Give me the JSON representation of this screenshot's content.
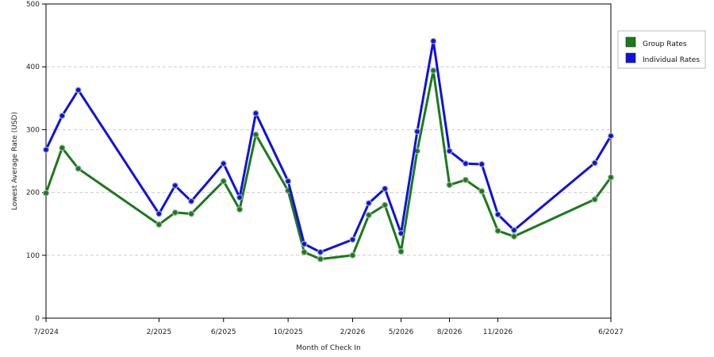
{
  "chart_data": {
    "type": "line",
    "xlabel": "Month of Check In",
    "ylabel": "Lowest Average Rate (USD)",
    "ylim": [
      0,
      500
    ],
    "yticks": [
      0,
      100,
      200,
      300,
      400,
      500
    ],
    "grid": "horizontal dashed",
    "legend_position": "top-right",
    "x": [
      "7/2024",
      "8/2024",
      "9/2024",
      "10/2024",
      "11/2024",
      "12/2024",
      "1/2025",
      "2/2025",
      "3/2025",
      "4/2025",
      "5/2025",
      "6/2025",
      "7/2025",
      "8/2025",
      "9/2025",
      "10/2025",
      "11/2025",
      "12/2025",
      "1/2026",
      "2/2026",
      "3/2026",
      "4/2026",
      "5/2026",
      "6/2026",
      "7/2026",
      "8/2026",
      "9/2026",
      "10/2026",
      "11/2026",
      "12/2026",
      "1/2027",
      "2/2027",
      "3/2027",
      "4/2027",
      "5/2027",
      "6/2027"
    ],
    "xtick_labels": [
      "7/2024",
      "2/2025",
      "6/2025",
      "10/2025",
      "2/2026",
      "5/2026",
      "8/2026",
      "11/2026",
      "6/2027"
    ],
    "series": [
      {
        "name": "Group Rates",
        "color": "#1a7a1a",
        "points": [
          {
            "x": "7/2024",
            "y": 199
          },
          {
            "x": "8/2024",
            "y": 271
          },
          {
            "x": "9/2024",
            "y": 238
          },
          {
            "x": "2/2025",
            "y": 149
          },
          {
            "x": "3/2025",
            "y": 168
          },
          {
            "x": "4/2025",
            "y": 166
          },
          {
            "x": "6/2025",
            "y": 218
          },
          {
            "x": "7/2025",
            "y": 173
          },
          {
            "x": "8/2025",
            "y": 292
          },
          {
            "x": "10/2025",
            "y": 203
          },
          {
            "x": "11/2025",
            "y": 105
          },
          {
            "x": "12/2025",
            "y": 94
          },
          {
            "x": "2/2026",
            "y": 100
          },
          {
            "x": "3/2026",
            "y": 164
          },
          {
            "x": "4/2026",
            "y": 180
          },
          {
            "x": "5/2026",
            "y": 106
          },
          {
            "x": "6/2026",
            "y": 266
          },
          {
            "x": "7/2026",
            "y": 394
          },
          {
            "x": "8/2026",
            "y": 212
          },
          {
            "x": "9/2026",
            "y": 220
          },
          {
            "x": "10/2026",
            "y": 202
          },
          {
            "x": "11/2026",
            "y": 139
          },
          {
            "x": "12/2026",
            "y": 130
          },
          {
            "x": "5/2027",
            "y": 189
          },
          {
            "x": "6/2027",
            "y": 224
          }
        ]
      },
      {
        "name": "Individual Rates",
        "color": "#1010e0",
        "points": [
          {
            "x": "7/2024",
            "y": 268
          },
          {
            "x": "8/2024",
            "y": 322
          },
          {
            "x": "9/2024",
            "y": 363
          },
          {
            "x": "2/2025",
            "y": 166
          },
          {
            "x": "3/2025",
            "y": 211
          },
          {
            "x": "4/2025",
            "y": 186
          },
          {
            "x": "6/2025",
            "y": 246
          },
          {
            "x": "7/2025",
            "y": 192
          },
          {
            "x": "8/2025",
            "y": 326
          },
          {
            "x": "10/2025",
            "y": 218
          },
          {
            "x": "11/2025",
            "y": 118
          },
          {
            "x": "12/2025",
            "y": 105
          },
          {
            "x": "2/2026",
            "y": 125
          },
          {
            "x": "3/2026",
            "y": 183
          },
          {
            "x": "4/2026",
            "y": 206
          },
          {
            "x": "5/2026",
            "y": 135
          },
          {
            "x": "6/2026",
            "y": 297
          },
          {
            "x": "7/2026",
            "y": 441
          },
          {
            "x": "8/2026",
            "y": 266
          },
          {
            "x": "9/2026",
            "y": 246
          },
          {
            "x": "10/2026",
            "y": 245
          },
          {
            "x": "11/2026",
            "y": 165
          },
          {
            "x": "12/2026",
            "y": 140
          },
          {
            "x": "5/2027",
            "y": 247
          },
          {
            "x": "6/2027",
            "y": 290
          }
        ]
      }
    ]
  }
}
